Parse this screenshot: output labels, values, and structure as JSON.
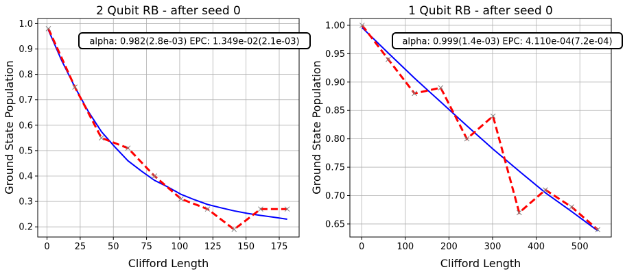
{
  "chart_data": [
    {
      "type": "line",
      "title": "2 Qubit RB - after seed 0",
      "xlabel": "Clifford Length",
      "ylabel": "Ground State Population",
      "xlim": [
        -7,
        190
      ],
      "ylim": [
        0.16,
        1.02
      ],
      "xticks": [
        0,
        25,
        50,
        75,
        100,
        125,
        150,
        175
      ],
      "xtick_labels": [
        "0",
        "25",
        "50",
        "75",
        "100",
        "125",
        "150",
        "175"
      ],
      "yticks": [
        0.2,
        0.3,
        0.4,
        0.5,
        0.6,
        0.7,
        0.8,
        0.9,
        1.0
      ],
      "ytick_labels": [
        "0.2",
        "0.3",
        "0.4",
        "0.5",
        "0.6",
        "0.7",
        "0.8",
        "0.9",
        "1.0"
      ],
      "grid": true,
      "annotation": "alpha: 0.982(2.8e-03) EPC: 1.349e-02(2.1e-03)",
      "annotation_placement": "top-right",
      "series": [
        {
          "role": "fit",
          "color": "#0000ff",
          "x": [
            1,
            11,
            21,
            31,
            41,
            51,
            61,
            71,
            81,
            91,
            101,
            111,
            121,
            131,
            141,
            151,
            161,
            171,
            181
          ],
          "y": [
            0.975,
            0.855,
            0.75,
            0.655,
            0.575,
            0.515,
            0.46,
            0.42,
            0.383,
            0.357,
            0.328,
            0.307,
            0.288,
            0.275,
            0.263,
            0.253,
            0.245,
            0.238,
            0.23
          ]
        },
        {
          "role": "mean",
          "color": "#ff0000",
          "x": [
            1,
            21,
            41,
            61,
            81,
            101,
            121,
            141,
            161,
            181
          ],
          "y": [
            0.98,
            0.75,
            0.55,
            0.51,
            0.4,
            0.31,
            0.27,
            0.19,
            0.27,
            0.27
          ]
        },
        {
          "role": "samples",
          "color": "#808080",
          "marker": "x",
          "x": [
            1,
            21,
            41,
            61,
            81,
            101,
            121,
            141,
            161,
            181
          ],
          "y": [
            0.98,
            0.75,
            0.55,
            0.51,
            0.4,
            0.31,
            0.27,
            0.19,
            0.27,
            0.27
          ]
        }
      ]
    },
    {
      "type": "line",
      "title": "1 Qubit RB - after seed 0",
      "xlabel": "Clifford Length",
      "ylabel": "Ground State Population",
      "xlim": [
        -27,
        572
      ],
      "ylim": [
        0.627,
        1.012
      ],
      "xticks": [
        0,
        100,
        200,
        300,
        400,
        500
      ],
      "xtick_labels": [
        "0",
        "100",
        "200",
        "300",
        "400",
        "500"
      ],
      "yticks": [
        0.65,
        0.7,
        0.75,
        0.8,
        0.85,
        0.9,
        0.95,
        1.0
      ],
      "ytick_labels": [
        "0.65",
        "0.70",
        "0.75",
        "0.80",
        "0.85",
        "0.90",
        "0.95",
        "1.00"
      ],
      "grid": true,
      "annotation": "alpha: 0.999(1.4e-03) EPC: 4.110e-04(7.2e-04)",
      "annotation_placement": "top-right",
      "series": [
        {
          "role": "fit",
          "color": "#0000ff",
          "x": [
            1,
            61,
            121,
            181,
            241,
            301,
            361,
            421,
            481,
            541
          ],
          "y": [
            0.996,
            0.951,
            0.907,
            0.865,
            0.823,
            0.782,
            0.743,
            0.705,
            0.672,
            0.638
          ]
        },
        {
          "role": "mean",
          "color": "#ff0000",
          "x": [
            1,
            61,
            121,
            181,
            241,
            301,
            361,
            421,
            481,
            541
          ],
          "y": [
            1.0,
            0.94,
            0.88,
            0.89,
            0.8,
            0.84,
            0.67,
            0.71,
            0.68,
            0.64
          ]
        },
        {
          "role": "samples",
          "color": "#808080",
          "marker": "x",
          "x": [
            1,
            61,
            121,
            181,
            241,
            301,
            361,
            421,
            481,
            541
          ],
          "y": [
            1.0,
            0.94,
            0.88,
            0.89,
            0.8,
            0.84,
            0.67,
            0.71,
            0.68,
            0.64
          ]
        }
      ]
    }
  ]
}
